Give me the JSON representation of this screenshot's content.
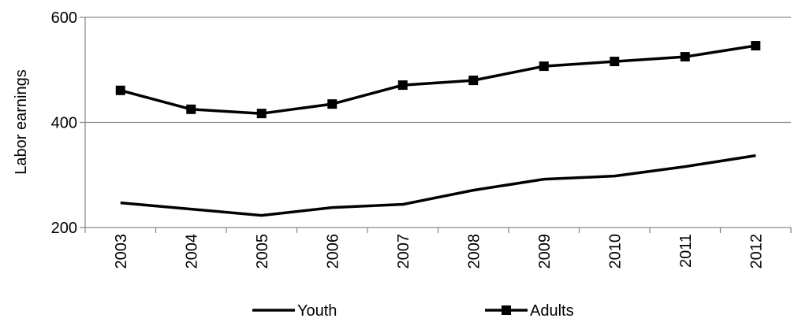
{
  "chart_data": {
    "type": "line",
    "title": "",
    "xlabel": "",
    "ylabel": "Labor earnings",
    "ylim": [
      200,
      600
    ],
    "y_ticks": [
      200,
      400,
      600
    ],
    "grid": "horizontal",
    "legend_position": "bottom",
    "categories": [
      "2003",
      "2004",
      "2005",
      "2006",
      "2007",
      "2008",
      "2009",
      "2010",
      "2011",
      "2012"
    ],
    "series": [
      {
        "name": "Youth",
        "marker": "none",
        "color": "#000000",
        "values": [
          247,
          235,
          223,
          238,
          244,
          271,
          292,
          298,
          316,
          337
        ]
      },
      {
        "name": "Adults",
        "marker": "square",
        "color": "#000000",
        "values": [
          461,
          425,
          417,
          435,
          471,
          480,
          507,
          516,
          525,
          546
        ]
      }
    ]
  }
}
